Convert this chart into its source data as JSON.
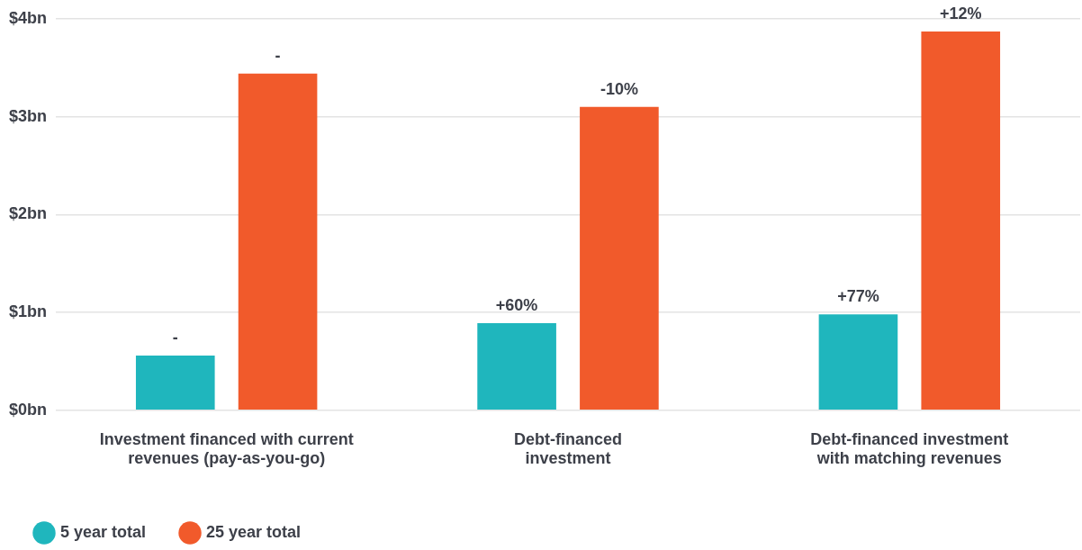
{
  "chart_data": {
    "type": "bar",
    "categories": [
      "Investment financed with current revenues (pay-as-you-go)",
      "Debt-financed investment",
      "Debt-financed investment with matching revenues"
    ],
    "series": [
      {
        "name": "5 year total",
        "color": "#1fb6bd",
        "values": [
          0.56,
          0.89,
          0.98
        ]
      },
      {
        "name": "25 year total",
        "color": "#f15a2b",
        "values": [
          3.44,
          3.1,
          3.87
        ]
      }
    ],
    "annotations": [
      "-",
      "-",
      "+60%",
      "-10%",
      "+77%",
      "+12%"
    ],
    "ylim": [
      0,
      4
    ],
    "yticks": [
      {
        "value": 0,
        "label": "$0bn"
      },
      {
        "value": 1,
        "label": "$1bn"
      },
      {
        "value": 2,
        "label": "$2bn"
      },
      {
        "value": 3,
        "label": "$3bn"
      },
      {
        "value": 4,
        "label": "$4bn"
      }
    ],
    "grid": "y",
    "legend": "bottom left",
    "marker": "circle"
  }
}
